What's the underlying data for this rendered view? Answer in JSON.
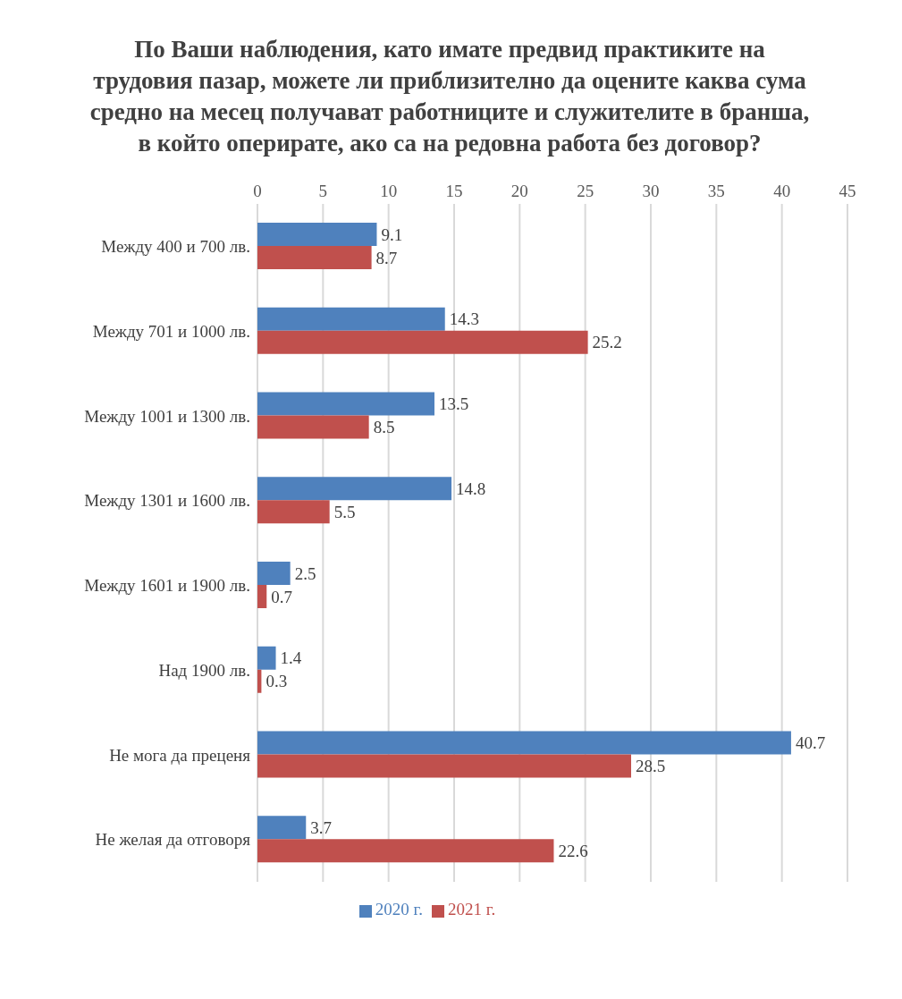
{
  "chart_data": {
    "type": "bar",
    "orientation": "horizontal",
    "title": "По Ваши наблюдения, като имате предвид практиките на трудовия пазар, можете ли приблизително да оцените каква сума средно на месец получават работниците и служителите в бранша, в който оперирате, ако са на редовна работа без договор?",
    "categories": [
      "Между 400 и 700 лв.",
      "Между 701 и 1000 лв.",
      "Между 1001 и 1300 лв.",
      "Между 1301 и 1600 лв.",
      "Между 1601 и 1900 лв.",
      "Над 1900 лв.",
      "Не мога да преценя",
      "Не желая да  отговоря"
    ],
    "series": [
      {
        "name": "2020 г.",
        "color": "#4f81bd",
        "values": [
          9.1,
          14.3,
          13.5,
          14.8,
          2.5,
          1.4,
          40.7,
          3.7
        ]
      },
      {
        "name": "2021 г.",
        "color": "#c0504d",
        "values": [
          8.7,
          25.2,
          8.5,
          5.5,
          0.7,
          0.3,
          28.5,
          22.6
        ]
      }
    ],
    "xlim": [
      0,
      45
    ],
    "xticks": [
      0,
      5,
      10,
      15,
      20,
      25,
      30,
      35,
      40,
      45
    ],
    "grid": "x",
    "legend": "bottom",
    "data_labels": true
  }
}
